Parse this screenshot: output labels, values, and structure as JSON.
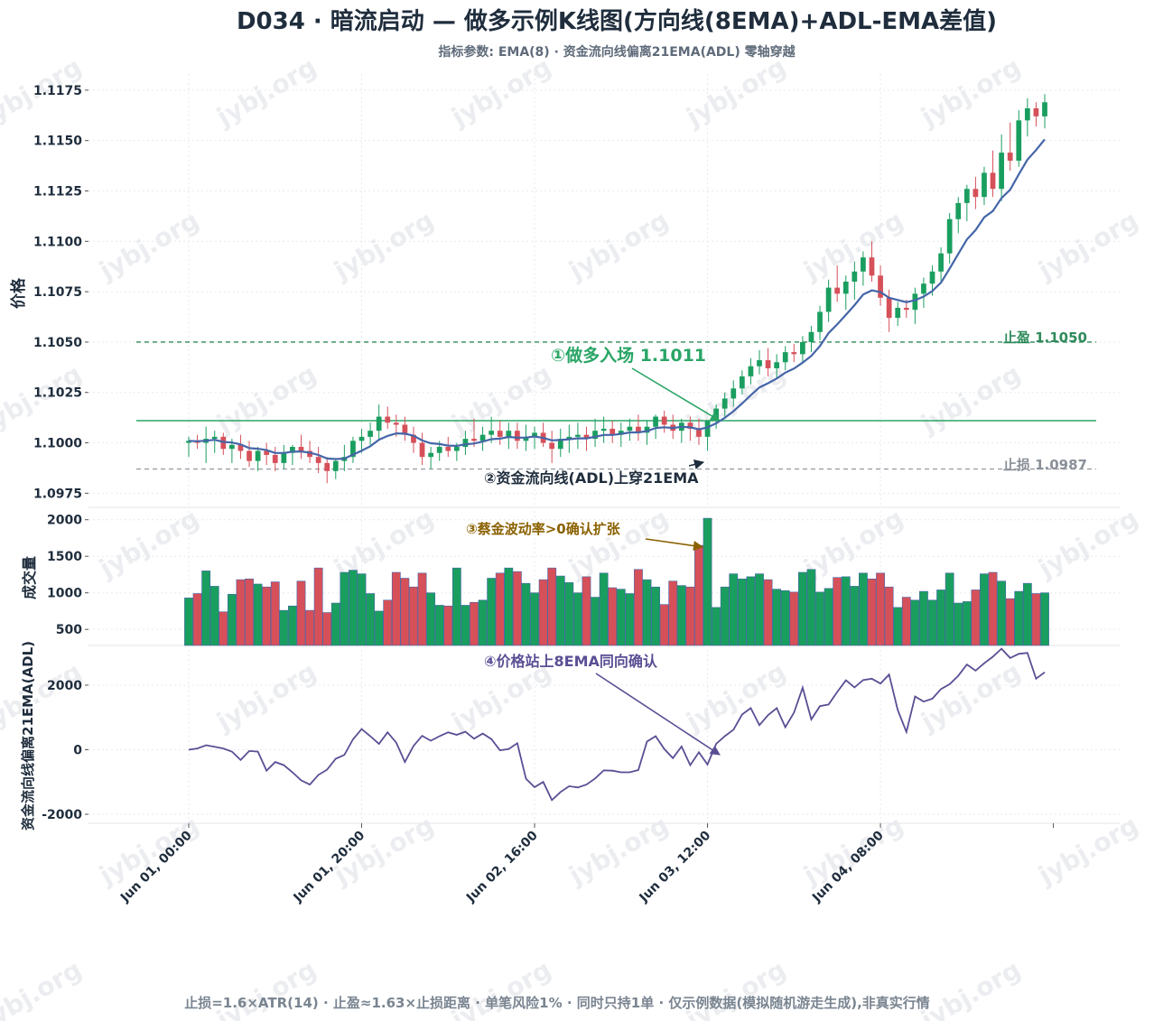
{
  "header": {
    "title": "D034 · 暗流启动 — 做多示例K线图(方向线(8EMA)+ADL-EMA差值)",
    "subtitle": "指标参数: EMA(8) · 资金流向线偏离21EMA(ADL) 零轴穿越"
  },
  "footer": {
    "note": "止损=1.6×ATR(14) · 止盈≈1.63×止损距离 · 单笔风险1% · 同时只持1单 · 仅示例数据(模拟随机游走生成),非真实行情"
  },
  "watermark": "jybj.org",
  "colors": {
    "up": "#1a9e5f",
    "down": "#d6505a",
    "ema": "#4566a8",
    "entry": "#2aa566",
    "take_profit": "#2f8a5b",
    "stop_loss": "#9aa0a8",
    "indicator": "#5a4e94",
    "annotation3": "#8a6100",
    "title": "#1f2d3d"
  },
  "chart_data": [
    {
      "panel": "price",
      "type": "candlestick",
      "ylabel": "价格",
      "ylim": [
        1.0968,
        1.1183
      ],
      "yticks": [
        "1.0975",
        "1.1000",
        "1.1025",
        "1.1050",
        "1.1075",
        "1.1100",
        "1.1125",
        "1.1150",
        "1.1175"
      ],
      "bars_per_hour": 1,
      "start": "Jun 01, 00:00",
      "ohlc": [
        [
          1.1,
          1.1003,
          1.0993,
          1.1001
        ],
        [
          1.1001,
          1.1004,
          1.0997,
          1.1
        ],
        [
          1.1,
          1.1008,
          1.099,
          1.1002
        ],
        [
          1.1002,
          1.1006,
          1.0995,
          1.1003
        ],
        [
          1.1003,
          1.1005,
          1.0994,
          1.0997
        ],
        [
          1.0997,
          1.1002,
          1.099,
          1.0999
        ],
        [
          1.0999,
          1.1004,
          1.0992,
          1.0996
        ],
        [
          1.0996,
          1.1001,
          1.0988,
          1.0991
        ],
        [
          1.0991,
          1.0998,
          1.0986,
          1.0996
        ],
        [
          1.0996,
          1.1,
          1.0989,
          1.0994
        ],
        [
          1.0994,
          1.0998,
          1.0986,
          1.099
        ],
        [
          1.099,
          1.0999,
          1.0987,
          1.0995
        ],
        [
          1.0995,
          1.0999,
          1.0989,
          1.0998
        ],
        [
          1.0998,
          1.1004,
          1.0992,
          1.0996
        ],
        [
          1.0996,
          1.1001,
          1.099,
          1.0993
        ],
        [
          1.0993,
          1.0998,
          1.0985,
          1.099
        ],
        [
          1.099,
          1.0993,
          1.098,
          1.0986
        ],
        [
          1.0986,
          1.0992,
          1.0982,
          1.0991
        ],
        [
          1.0991,
          1.0999,
          1.0986,
          1.0993
        ],
        [
          1.0993,
          1.1003,
          1.099,
          1.1001
        ],
        [
          1.1001,
          1.1007,
          1.0995,
          1.1003
        ],
        [
          1.1003,
          1.101,
          1.0999,
          1.1006
        ],
        [
          1.1006,
          1.1019,
          1.1002,
          1.1013
        ],
        [
          1.1013,
          1.1018,
          1.1007,
          1.101
        ],
        [
          1.101,
          1.1014,
          1.1003,
          1.1009
        ],
        [
          1.1009,
          1.1013,
          1.1001,
          1.1004
        ],
        [
          1.1004,
          1.1008,
          1.0995,
          1.1
        ],
        [
          1.1,
          1.1005,
          1.0989,
          1.0993
        ],
        [
          1.0993,
          1.0998,
          1.0987,
          1.0995
        ],
        [
          1.0995,
          1.1001,
          1.0991,
          1.0998
        ],
        [
          1.0998,
          1.1003,
          1.0993,
          1.0996
        ],
        [
          1.0996,
          1.1,
          1.0991,
          1.0998
        ],
        [
          1.0998,
          1.1006,
          1.0994,
          1.1002
        ],
        [
          1.1002,
          1.1012,
          1.0998,
          1.1001
        ],
        [
          1.1001,
          1.1008,
          1.0996,
          1.1004
        ],
        [
          1.1004,
          1.1013,
          1.1,
          1.1006
        ],
        [
          1.1006,
          1.1011,
          1.0999,
          1.1003
        ],
        [
          1.1003,
          1.101,
          1.0997,
          1.1006
        ],
        [
          1.1006,
          1.101,
          1.0997,
          1.1001
        ],
        [
          1.1001,
          1.1009,
          1.0996,
          1.1003
        ],
        [
          1.1003,
          1.1008,
          1.0997,
          1.1005
        ],
        [
          1.1005,
          1.101,
          1.0998,
          1.1
        ],
        [
          1.1,
          1.1006,
          1.099,
          1.0997
        ],
        [
          1.0997,
          1.1007,
          1.0993,
          1.1002
        ],
        [
          1.1002,
          1.1009,
          1.0995,
          1.1003
        ],
        [
          1.1003,
          1.101,
          1.0997,
          1.1004
        ],
        [
          1.1004,
          1.1008,
          1.0996,
          1.1002
        ],
        [
          1.1002,
          1.1012,
          1.0998,
          1.1006
        ],
        [
          1.1006,
          1.1013,
          1.1,
          1.1007
        ],
        [
          1.1007,
          1.1011,
          1.1,
          1.1004
        ],
        [
          1.1004,
          1.101,
          1.0998,
          1.1006
        ],
        [
          1.1006,
          1.1012,
          1.1001,
          1.1008
        ],
        [
          1.1008,
          1.1014,
          1.1001,
          1.1005
        ],
        [
          1.1005,
          1.1011,
          1.0999,
          1.1008
        ],
        [
          1.1008,
          1.1014,
          1.1002,
          1.1013
        ],
        [
          1.1013,
          1.1016,
          1.1005,
          1.1009
        ],
        [
          1.1009,
          1.1014,
          1.1002,
          1.1006
        ],
        [
          1.1006,
          1.1012,
          1.1,
          1.101
        ],
        [
          1.101,
          1.1013,
          1.1001,
          1.1007
        ],
        [
          1.1007,
          1.1012,
          1.0999,
          1.1003
        ],
        [
          1.1003,
          1.1009,
          1.0996,
          1.1011
        ],
        [
          1.1011,
          1.1019,
          1.1007,
          1.1017
        ],
        [
          1.1017,
          1.1025,
          1.1013,
          1.1022
        ],
        [
          1.1022,
          1.1031,
          1.1018,
          1.1027
        ],
        [
          1.1027,
          1.1036,
          1.1024,
          1.1033
        ],
        [
          1.1033,
          1.1042,
          1.1029,
          1.1038
        ],
        [
          1.1038,
          1.1046,
          1.1034,
          1.1041
        ],
        [
          1.1041,
          1.1047,
          1.1033,
          1.1037
        ],
        [
          1.1037,
          1.1044,
          1.1032,
          1.104
        ],
        [
          1.104,
          1.1048,
          1.1036,
          1.1045
        ],
        [
          1.1045,
          1.1049,
          1.104,
          1.1044
        ],
        [
          1.1044,
          1.1053,
          1.104,
          1.105
        ],
        [
          1.105,
          1.1058,
          1.1045,
          1.1055
        ],
        [
          1.1055,
          1.1068,
          1.1051,
          1.1065
        ],
        [
          1.1065,
          1.1081,
          1.106,
          1.1077
        ],
        [
          1.1077,
          1.1088,
          1.107,
          1.1074
        ],
        [
          1.1074,
          1.1083,
          1.1066,
          1.108
        ],
        [
          1.108,
          1.109,
          1.1071,
          1.1085
        ],
        [
          1.1085,
          1.1095,
          1.1078,
          1.1092
        ],
        [
          1.1092,
          1.11,
          1.108,
          1.1083
        ],
        [
          1.1083,
          1.1088,
          1.1068,
          1.1072
        ],
        [
          1.1072,
          1.1076,
          1.1055,
          1.1062
        ],
        [
          1.1062,
          1.107,
          1.1058,
          1.1067
        ],
        [
          1.1067,
          1.1071,
          1.1062,
          1.1066
        ],
        [
          1.1066,
          1.1077,
          1.1059,
          1.1074
        ],
        [
          1.1074,
          1.1082,
          1.1067,
          1.1079
        ],
        [
          1.1079,
          1.1088,
          1.1073,
          1.1085
        ],
        [
          1.1085,
          1.1097,
          1.108,
          1.1094
        ],
        [
          1.1094,
          1.1114,
          1.1089,
          1.1111
        ],
        [
          1.1111,
          1.1122,
          1.1104,
          1.1119
        ],
        [
          1.1119,
          1.1128,
          1.111,
          1.1126
        ],
        [
          1.1126,
          1.1132,
          1.1116,
          1.1122
        ],
        [
          1.1122,
          1.1137,
          1.1118,
          1.1134
        ],
        [
          1.1134,
          1.1145,
          1.1122,
          1.1126
        ],
        [
          1.1126,
          1.1153,
          1.112,
          1.1144
        ],
        [
          1.1144,
          1.1159,
          1.1135,
          1.114
        ],
        [
          1.114,
          1.1165,
          1.1137,
          1.116
        ],
        [
          1.116,
          1.1171,
          1.1152,
          1.1166
        ],
        [
          1.1166,
          1.1169,
          1.1157,
          1.1162
        ],
        [
          1.1162,
          1.1173,
          1.1156,
          1.1169
        ]
      ],
      "ema8_label": "方向线(8EMA)",
      "levels": {
        "entry": 1.1011,
        "take_profit": 1.105,
        "stop_loss": 1.0987,
        "take_profit_label": "止盈 1.1050",
        "stop_loss_label": "止损 1.0987"
      },
      "annotations": {
        "a1": "①做多入场 1.1011",
        "a2": "②资金流向线(ADL)上穿21EMA"
      }
    },
    {
      "panel": "volume",
      "type": "bar",
      "ylabel": "成交量",
      "ylim": [
        280,
        2120
      ],
      "yticks": [
        "500",
        "1000",
        "1500",
        "2000"
      ],
      "values": [
        930,
        990,
        1300,
        1090,
        740,
        980,
        1180,
        1190,
        1120,
        1080,
        1150,
        760,
        820,
        1160,
        760,
        1340,
        730,
        860,
        1280,
        1310,
        1260,
        990,
        750,
        900,
        1280,
        1200,
        1080,
        1270,
        1000,
        830,
        820,
        1340,
        830,
        870,
        900,
        1200,
        1270,
        1340,
        1290,
        1130,
        1000,
        1180,
        1340,
        1230,
        1140,
        1000,
        1220,
        940,
        1270,
        1070,
        1050,
        990,
        1320,
        1180,
        1080,
        840,
        1160,
        1100,
        1080,
        1650,
        2020,
        800,
        1080,
        1260,
        1190,
        1220,
        1260,
        1180,
        1050,
        1030,
        1010,
        1280,
        1320,
        1010,
        1060,
        1210,
        1220,
        1090,
        1270,
        1190,
        1270,
        1080,
        800,
        940,
        900,
        1020,
        900,
        1040,
        1270,
        860,
        880,
        1040,
        1260,
        1280,
        1160,
        920,
        1020,
        1130,
        990,
        1000
      ]
    },
    {
      "panel": "indicator",
      "type": "line",
      "ylabel": "资金流向线偏离21EMA(ADL)",
      "ylim": [
        -2280,
        3230
      ],
      "yticks": [
        "-2000",
        "0",
        "2000"
      ],
      "xticks": [
        "Jun 01, 00:00",
        "Jun 01, 20:00",
        "Jun 02, 16:00",
        "Jun 03, 12:00",
        "Jun 04, 08:00"
      ],
      "values": [
        0,
        40,
        140,
        90,
        40,
        -60,
        -320,
        -40,
        -60,
        -650,
        -380,
        -480,
        -700,
        -950,
        -1080,
        -780,
        -620,
        -280,
        -160,
        320,
        640,
        420,
        180,
        540,
        220,
        -380,
        120,
        430,
        280,
        420,
        540,
        460,
        560,
        340,
        500,
        330,
        -20,
        20,
        200,
        -900,
        -1160,
        -1000,
        -1560,
        -1310,
        -1130,
        -1170,
        -1080,
        -890,
        -640,
        -650,
        -700,
        -700,
        -630,
        250,
        420,
        20,
        -260,
        100,
        -480,
        -80,
        -460,
        180,
        420,
        620,
        1090,
        1290,
        760,
        1070,
        1290,
        700,
        1150,
        1920,
        940,
        1350,
        1400,
        1790,
        2150,
        1930,
        2160,
        2200,
        2050,
        2330,
        1230,
        550,
        1650,
        1490,
        1580,
        1880,
        2030,
        2290,
        2640,
        2450,
        2680,
        2880,
        3130,
        2840,
        2970,
        3000,
        2200,
        2400
      ],
      "annotation": "④价格站上8EMA同向确认"
    }
  ],
  "volume_annotation": "③蔡金波动率>0确认扩张"
}
